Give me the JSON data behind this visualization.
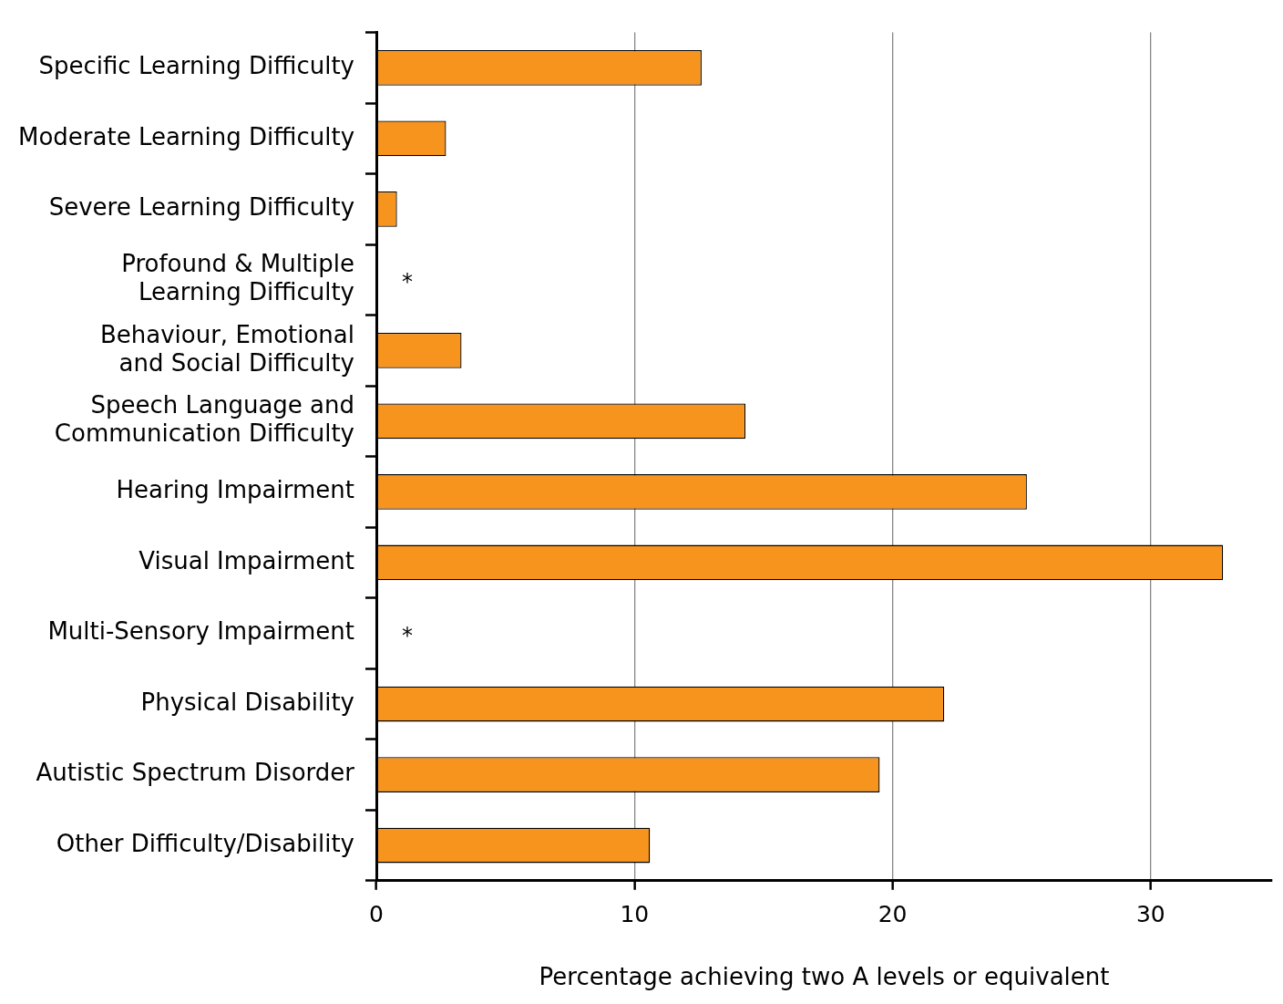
{
  "chart_data": {
    "type": "bar",
    "orientation": "horizontal",
    "xlabel": "Percentage achieving two A levels or equivalent",
    "categories": [
      "Specific Learning Difficulty",
      "Moderate Learning Difficulty",
      "Severe Learning Difficulty",
      "Profound & Multiple Learning Difficulty",
      "Behaviour, Emotional and Social Difficulty",
      "Speech Language and Communication Difficulty",
      "Hearing Impairment",
      "Visual Impairment",
      "Multi-Sensory Impairment",
      "Physical Disability",
      "Autistic Spectrum Disorder",
      "Other Difficulty/Disability"
    ],
    "values": [
      12.6,
      2.7,
      0.8,
      null,
      3.3,
      14.3,
      25.2,
      32.8,
      null,
      22.0,
      19.5,
      10.6
    ],
    "value_labels": [
      null,
      null,
      null,
      "*",
      null,
      null,
      null,
      null,
      "*",
      null,
      null,
      null
    ],
    "color": "#f7941d",
    "xlim": [
      0,
      34.7
    ],
    "xticks": [
      0,
      10,
      20,
      30
    ],
    "grid": "x",
    "legend": false
  }
}
